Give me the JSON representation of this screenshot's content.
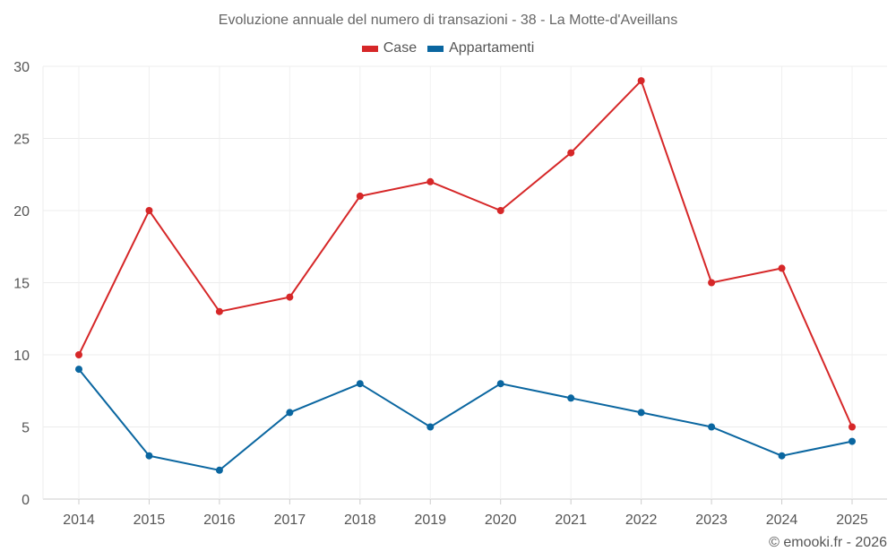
{
  "chart_data": {
    "type": "line",
    "title": "Evoluzione annuale del numero di transazioni - 38 - La Motte-d'Aveillans",
    "x": [
      "2014",
      "2015",
      "2016",
      "2017",
      "2018",
      "2019",
      "2020",
      "2021",
      "2022",
      "2023",
      "2024",
      "2025"
    ],
    "series": [
      {
        "name": "Case",
        "color": "#d62728",
        "values": [
          10,
          20,
          13,
          14,
          21,
          22,
          20,
          24,
          29,
          15,
          16,
          5
        ]
      },
      {
        "name": "Appartamenti",
        "color": "#0a66a0",
        "values": [
          9,
          3,
          2,
          6,
          8,
          5,
          8,
          7,
          6,
          5,
          3,
          4
        ]
      }
    ],
    "ylim": [
      0,
      30
    ],
    "yticks": [
      0,
      5,
      10,
      15,
      20,
      25,
      30
    ],
    "xlabel": "",
    "ylabel": "",
    "grid": true,
    "legend": "top-center"
  },
  "credit": "© emooki.fr - 2026"
}
